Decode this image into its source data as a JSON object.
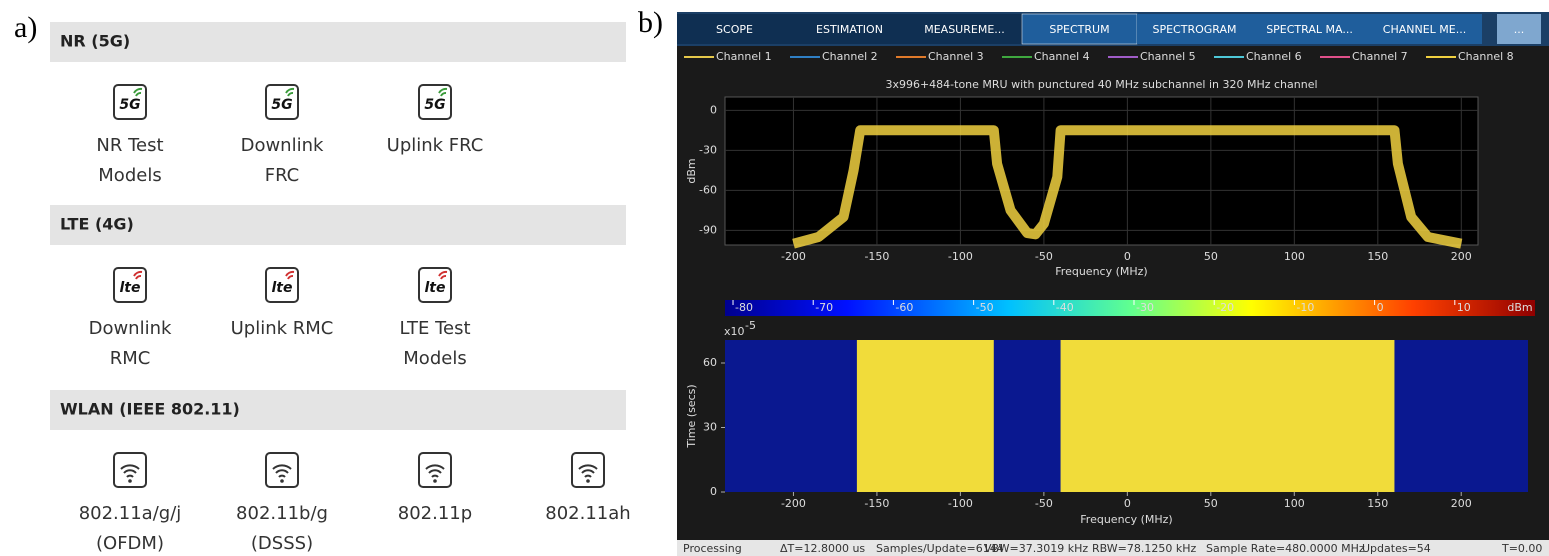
{
  "panel_a": {
    "label": "a)",
    "sections": [
      {
        "title": "NR (5G)",
        "icon_text": "5G",
        "apps": [
          [
            "NR Test",
            "Models"
          ],
          [
            "Downlink",
            "FRC"
          ],
          [
            "Uplink FRC"
          ]
        ]
      },
      {
        "title": "LTE (4G)",
        "icon_text": "lte",
        "apps": [
          [
            "Downlink",
            "RMC"
          ],
          [
            "Uplink RMC"
          ],
          [
            "LTE Test",
            "Models"
          ]
        ]
      },
      {
        "title": "WLAN (IEEE 802.11)",
        "icon_text": null,
        "apps": [
          [
            "802.11a/g/j",
            "(OFDM)"
          ],
          [
            "802.11b/g",
            "(DSSS)"
          ],
          [
            "802.11p"
          ],
          [
            "802.11ah"
          ]
        ]
      }
    ]
  },
  "panel_b": {
    "label": "b)",
    "tabs": [
      "SCOPE",
      "ESTIMATION",
      "MEASUREME...",
      "SPECTRUM",
      "SPECTROGRAM",
      "SPECTRAL MA...",
      "CHANNEL ME...",
      "..."
    ],
    "selected_tab": 3,
    "channels": [
      {
        "name": "Channel 1",
        "color": "#e6c84a"
      },
      {
        "name": "Channel 2",
        "color": "#2f7fc4"
      },
      {
        "name": "Channel 3",
        "color": "#e07a2a"
      },
      {
        "name": "Channel 4",
        "color": "#3fa83f"
      },
      {
        "name": "Channel 5",
        "color": "#a05cc8"
      },
      {
        "name": "Channel 6",
        "color": "#4ec8d8"
      },
      {
        "name": "Channel 7",
        "color": "#e0508a"
      },
      {
        "name": "Channel 8",
        "color": "#f0d040"
      }
    ],
    "spectrum": {
      "title": "3x996+484-tone MRU with punctured 40 MHz subchannel in 320 MHz channel",
      "xlabel": "Frequency (MHz)",
      "ylabel": "dBm",
      "xlim": [
        -241,
        210
      ],
      "xticks": [
        -200,
        -150,
        -100,
        -50,
        0,
        50,
        100,
        150,
        200
      ],
      "ylim": [
        -101,
        10
      ],
      "yticks": [
        0,
        -30,
        -60,
        -90
      ],
      "grid": true,
      "trace": {
        "color": "#f0d040",
        "x": [
          -200,
          -185,
          -170,
          -164,
          -160,
          -80,
          -78,
          -70,
          -60,
          -55,
          -50,
          -42,
          -40,
          160,
          162,
          170,
          180,
          200
        ],
        "values": [
          -100,
          -95,
          -80,
          -45,
          -15,
          -15,
          -40,
          -75,
          -92,
          -93,
          -85,
          -50,
          -15,
          -15,
          -40,
          -80,
          -95,
          -100
        ]
      }
    },
    "spectrogram": {
      "xlabel": "Frequency (MHz)",
      "ylabel": "Time (secs)",
      "y_scale_base": "x10",
      "y_scale_exponent": "-5",
      "xlim": [
        -241,
        240
      ],
      "xticks": [
        -200,
        -150,
        -100,
        -50,
        0,
        50,
        100,
        150,
        200
      ],
      "ylim": [
        0,
        70.7
      ],
      "yticks": [
        0,
        30,
        60
      ],
      "occupied_bands": [
        [
          -162,
          -80
        ],
        [
          -40,
          160
        ]
      ],
      "clim": [
        -81,
        20
      ],
      "cticks": [
        -80,
        -70,
        -60,
        -50,
        -40,
        -30,
        -20,
        -10,
        0,
        10
      ],
      "cunit": "dBm"
    },
    "status": [
      "Processing",
      "ΔT=12.8000 us",
      "Samples/Update=6144",
      "VBW=37.3019 kHz",
      "RBW=78.1250 kHz",
      "Sample Rate=480.0000 MHz",
      "Updates=54",
      "T=0.00"
    ]
  }
}
